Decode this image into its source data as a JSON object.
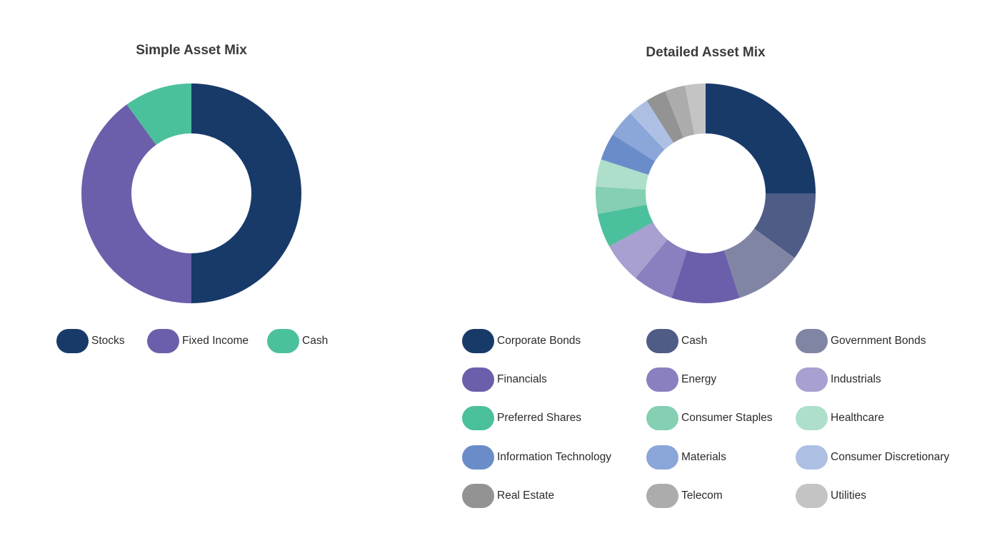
{
  "chart_data": [
    {
      "type": "pie",
      "title": "Simple Asset Mix",
      "donut": true,
      "categories": [
        "Stocks",
        "Fixed Income",
        "Cash"
      ],
      "values": [
        50,
        40,
        10
      ],
      "colors": [
        "#183a69",
        "#6b5fab",
        "#4bc09d"
      ],
      "legend_position": "bottom"
    },
    {
      "type": "pie",
      "title": "Detailed Asset Mix",
      "donut": true,
      "categories": [
        "Corporate Bonds",
        "Cash",
        "Government Bonds",
        "Financials",
        "Energy",
        "Industrials",
        "Preferred Shares",
        "Consumer Staples",
        "Healthcare",
        "Information Technology",
        "Materials",
        "Consumer Discretionary",
        "Real Estate",
        "Telecom",
        "Utilities"
      ],
      "values": [
        25,
        10,
        10,
        10,
        6,
        6,
        5,
        4,
        4,
        4,
        4,
        3,
        3,
        3,
        3
      ],
      "colors": [
        "#183a69",
        "#4e5c86",
        "#8185a4",
        "#6b5fab",
        "#8a80bf",
        "#a7a0d0",
        "#4bc09d",
        "#85cfb2",
        "#addfca",
        "#6a8dca",
        "#8ba6d8",
        "#adc0e4",
        "#939393",
        "#acacac",
        "#c4c4c4"
      ],
      "legend_position": "bottom"
    }
  ]
}
